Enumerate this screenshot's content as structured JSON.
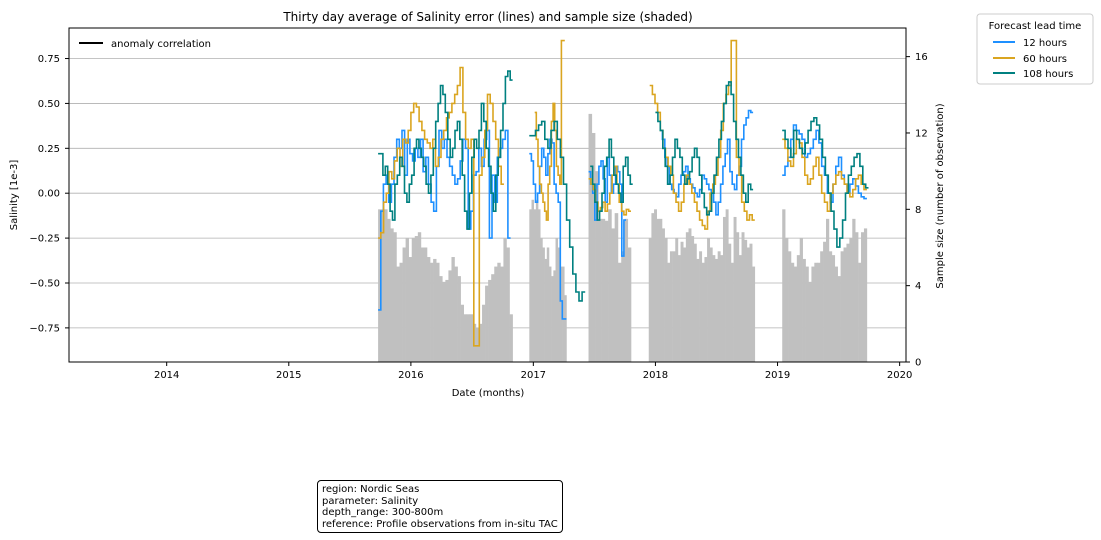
{
  "chart_data": {
    "type": "line",
    "title": "Thirty day average of Salinity error (lines) and sample size (shaded)",
    "xlabel": "Date (months)",
    "ylabel": "Salinity [1e-3]",
    "y2label": "Sample size (number of observation)",
    "xlim": [
      "2013-03-15",
      "2020-01-20"
    ],
    "ylim": [
      -0.94,
      0.92
    ],
    "y2lim": [
      0,
      17.5
    ],
    "x_ticks": [
      "2014",
      "2015",
      "2016",
      "2017",
      "2018",
      "2019",
      "2020"
    ],
    "y_ticks": [
      "0.75",
      "0.50",
      "0.25",
      "0.00",
      "−0.25",
      "−0.50",
      "−0.75"
    ],
    "y2_ticks": [
      "16",
      "12",
      "8",
      "4",
      "0"
    ],
    "grid": "horizontal",
    "legend_inner": {
      "label": "anomaly correlation",
      "color": "#000000",
      "placement": "upper-left"
    },
    "legend_outer": {
      "title": "Forecast lead time",
      "placement": "outside-right",
      "entries": [
        {
          "label": "12 hours",
          "color": "#1e90ff"
        },
        {
          "label": "60 hours",
          "color": "#daa520"
        },
        {
          "label": "108 hours",
          "color": "#008080"
        }
      ]
    },
    "bar_color": "#c0c0c0",
    "bars": [
      {
        "start": "2015-09-25",
        "end": "2016-10-31",
        "values": [
          8,
          8,
          8,
          7.5,
          7,
          6.8,
          5,
          5.2,
          6,
          6.5,
          5.5,
          6.5,
          6.6,
          6.8,
          6,
          6,
          5.5,
          5.2,
          5.4,
          5.2,
          4.5,
          4.2,
          4.3,
          4.8,
          5.5,
          5,
          4.5,
          3,
          2.5,
          2.5,
          2.5,
          2,
          1.8,
          2,
          3,
          4,
          4.3,
          4.6,
          5,
          5.2,
          5,
          6.5,
          6,
          2.5
        ]
      },
      {
        "start": "2016-12-20",
        "end": "2017-04-10",
        "values": [
          8,
          8.5,
          8,
          8.5,
          8,
          6.5,
          6,
          5.4,
          6,
          5,
          4.5,
          4.8,
          6.5,
          6,
          5,
          5,
          3.5
        ]
      },
      {
        "start": "2017-06-15",
        "end": "2017-10-20",
        "values": [
          13,
          12,
          10,
          7.5,
          7.5,
          7.4,
          8,
          7,
          7.8,
          5.2,
          5.8,
          7.5,
          6
        ]
      },
      {
        "start": "2017-12-12",
        "end": "2018-10-25",
        "values": [
          6.5,
          7.8,
          8,
          7.5,
          7.5,
          7,
          6.5,
          5.2,
          5.8,
          5.8,
          6.5,
          5.6,
          6.3,
          6,
          6.8,
          7,
          6.6,
          6.2,
          5.4,
          5.8,
          5.2,
          5.5,
          6.5,
          6,
          5.6,
          5.4,
          5.8,
          5.6,
          7.6,
          8,
          6.2,
          5.2,
          7.6,
          6.8,
          5.6,
          6.8,
          6.4,
          6,
          6.2,
          5
        ]
      },
      {
        "start": "2019-01-15",
        "end": "2019-09-25",
        "values": [
          8,
          6.5,
          5.8,
          5.2,
          5,
          5.6,
          6.5,
          5.4,
          5,
          4.2,
          5,
          5.2,
          5.2,
          5.8,
          6.3,
          7.5,
          5.8,
          5.6,
          5,
          4.5,
          5.8,
          6,
          6.2,
          6.5,
          7.5,
          6.8,
          5.2,
          6.8,
          7
        ]
      }
    ],
    "series": [
      {
        "name": "12 hours",
        "color": "#1e90ff",
        "segments": [
          {
            "start": "2015-09-25",
            "end": "2016-10-25",
            "values": [
              -0.65,
              -0.1,
              0.05,
              0.1,
              -0.05,
              0.05,
              0.2,
              0.3,
              0.25,
              0.35,
              0.1,
              0.3,
              0.22,
              0.18,
              0.25,
              0.2,
              0.3,
              0.12,
              0.2,
              0.05,
              -0.05,
              -0.1,
              0.15,
              0.35,
              0.25,
              0.3,
              0.2,
              0.15,
              0.1,
              0.05,
              0.08,
              0.18,
              0.3,
              0.25,
              -0.2,
              -0.1,
              0.1,
              0.12,
              0.25,
              0.15,
              0.3,
              0.35,
              -0.25,
              0.1,
              -0.05,
              0.2,
              0.25,
              0.3,
              0.35,
              -0.25
            ]
          },
          {
            "start": "2016-12-20",
            "end": "2017-04-10",
            "values": [
              0.22,
              0.18,
              0.05,
              -0.05,
              0.0,
              0.15,
              0.25,
              0.2,
              0.1,
              0.22,
              0.3,
              0.28,
              0.05,
              0.0,
              -0.05,
              -0.6,
              -0.7,
              -0.7
            ]
          },
          {
            "start": "2017-06-15",
            "end": "2017-10-05",
            "values": [
              0.12,
              0.05,
              0.0,
              -0.15,
              0.05,
              0.15,
              0.18,
              0.08,
              -0.05,
              0.2,
              0.1,
              0.0,
              0.05,
              0.15,
              0.12,
              0.05,
              -0.35,
              -0.15
            ]
          },
          {
            "start": "2018-01-15",
            "end": "2018-10-20",
            "values": [
              0.35,
              0.3,
              0.2,
              0.15,
              0.05,
              0.02,
              0.0,
              -0.02,
              0.05,
              0.1,
              0.12,
              0.15,
              0.08,
              0.05,
              0.03,
              0.0,
              -0.02,
              0.02,
              0.1,
              0.08,
              0.05,
              0.02,
              0.0,
              -0.05,
              -0.12,
              -0.05,
              0.05,
              0.15,
              0.22,
              0.3,
              0.12,
              0.05,
              0.02,
              0.1,
              0.15,
              0.3,
              0.38,
              0.42,
              0.46,
              0.45
            ]
          },
          {
            "start": "2019-01-15",
            "end": "2019-09-25",
            "values": [
              0.1,
              0.15,
              0.2,
              0.3,
              0.38,
              0.35,
              0.33,
              0.3,
              0.2,
              0.22,
              0.25,
              0.3,
              0.35,
              0.28,
              0.15,
              0.1,
              0.0,
              -0.05,
              0.05,
              0.15,
              0.2,
              0.1,
              0.05,
              0.0,
              0.05,
              0.08,
              0.04,
              0.0,
              -0.02,
              -0.03
            ]
          }
        ]
      },
      {
        "name": "60 hours",
        "color": "#daa520",
        "segments": [
          {
            "start": "2015-09-25",
            "end": "2016-10-05",
            "values": [
              -0.25,
              -0.22,
              -0.05,
              0.0,
              0.12,
              0.08,
              0.18,
              0.25,
              0.15,
              0.3,
              0.28,
              0.35,
              0.45,
              0.5,
              0.48,
              0.4,
              0.35,
              0.3,
              0.28,
              0.25,
              0.3,
              0.15,
              0.2,
              0.3,
              0.35,
              0.42,
              0.45,
              0.5,
              0.55,
              0.6,
              0.7,
              0.45,
              0.3,
              0.25,
              0.3,
              -0.85,
              -0.85,
              0.1,
              0.2,
              0.35,
              0.55,
              0.5,
              0.4,
              0.3,
              0.15,
              0.05
            ]
          },
          {
            "start": "2017-01-05",
            "end": "2017-04-05",
            "values": [
              0.45,
              0.3,
              0.15,
              0.05,
              0.0,
              -0.05,
              -0.1,
              -0.15,
              0.05,
              0.15,
              0.4,
              0.5,
              0.35,
              0.15,
              0.1,
              0.05,
              0.85,
              0.85
            ]
          },
          {
            "start": "2017-06-15",
            "end": "2017-10-20",
            "values": [
              0.08,
              0.05,
              0.02,
              -0.05,
              -0.1,
              -0.08,
              -0.05,
              -0.1,
              -0.06,
              0.0,
              0.1,
              0.15,
              0.05,
              -0.05,
              -0.1,
              -0.12,
              -0.09,
              -0.1
            ]
          },
          {
            "start": "2017-12-15",
            "end": "2018-10-25",
            "values": [
              0.6,
              0.55,
              0.5,
              0.45,
              0.35,
              0.25,
              0.2,
              0.15,
              0.1,
              0.0,
              -0.05,
              -0.1,
              -0.05,
              0.05,
              0.1,
              0.05,
              0.0,
              -0.05,
              -0.1,
              -0.15,
              -0.18,
              -0.2,
              -0.1,
              0.0,
              0.05,
              0.1,
              0.2,
              0.35,
              0.5,
              0.55,
              0.6,
              0.85,
              0.85,
              0.2,
              0.1,
              -0.05,
              -0.1,
              -0.15,
              -0.12,
              -0.15
            ]
          },
          {
            "start": "2019-01-15",
            "end": "2019-09-25",
            "values": [
              0.3,
              0.25,
              0.18,
              0.15,
              0.22,
              0.3,
              0.28,
              0.2,
              0.1,
              0.05,
              0.08,
              0.15,
              0.2,
              0.1,
              0.0,
              -0.05,
              -0.1,
              0.0,
              0.05,
              0.1,
              0.12,
              0.08,
              0.05,
              0.0,
              -0.02,
              0.02,
              0.08,
              0.1,
              0.05,
              0.02
            ]
          }
        ]
      },
      {
        "name": "108 hours",
        "color": "#008080",
        "segments": [
          {
            "start": "2015-09-25",
            "end": "2016-10-31",
            "values": [
              0.22,
              0.22,
              0.1,
              0.15,
              0.05,
              -0.1,
              -0.15,
              0.05,
              0.1,
              0.2,
              0.15,
              0.0,
              -0.05,
              0.05,
              0.1,
              0.25,
              0.3,
              0.25,
              0.2,
              0.15,
              0.05,
              0.0,
              0.1,
              0.25,
              0.4,
              0.5,
              0.6,
              0.55,
              0.45,
              0.3,
              0.2,
              0.25,
              0.35,
              0.4,
              0.3,
              0.1,
              -0.1,
              -0.2,
              0.0,
              0.2,
              0.3,
              0.25,
              0.35,
              0.5,
              0.4,
              0.25,
              0.15,
              0.0,
              -0.1,
              0.1,
              0.2,
              0.35,
              0.5,
              0.65,
              0.68,
              0.63
            ]
          },
          {
            "start": "2016-12-20",
            "end": "2017-06-05",
            "values": [
              0.32,
              0.32,
              0.35,
              0.38,
              0.4,
              0.3,
              0.25,
              0.35,
              0.4,
              0.3,
              0.2,
              0.05,
              -0.15,
              -0.3,
              -0.45,
              -0.55,
              -0.6,
              -0.55
            ]
          },
          {
            "start": "2017-06-20",
            "end": "2017-10-25",
            "values": [
              0.15,
              0.05,
              -0.05,
              -0.15,
              -0.1,
              0.0,
              0.15,
              0.2,
              0.3,
              0.2,
              0.1,
              0.05,
              0.0,
              -0.05,
              0.15,
              0.2,
              0.1,
              0.05
            ]
          },
          {
            "start": "2018-01-01",
            "end": "2018-10-20",
            "values": [
              0.45,
              0.4,
              0.35,
              0.25,
              0.15,
              0.05,
              0.1,
              0.2,
              0.3,
              0.25,
              0.2,
              0.1,
              0.05,
              0.08,
              0.12,
              0.2,
              0.25,
              0.2,
              0.1,
              0.0,
              -0.08,
              -0.12,
              -0.1,
              0.0,
              0.1,
              0.2,
              0.3,
              0.4,
              0.5,
              0.6,
              0.62,
              0.55,
              0.4,
              0.3,
              0.2,
              0.1,
              0.0,
              -0.05,
              0.05,
              0.02
            ]
          },
          {
            "start": "2019-01-15",
            "end": "2019-09-30",
            "values": [
              0.35,
              0.3,
              0.25,
              0.2,
              0.35,
              0.3,
              0.25,
              0.22,
              0.28,
              0.35,
              0.4,
              0.42,
              0.38,
              0.3,
              0.2,
              0.1,
              0.0,
              -0.1,
              -0.2,
              -0.3,
              -0.25,
              -0.15,
              0.0,
              0.1,
              0.15,
              0.2,
              0.22,
              0.15,
              0.05,
              0.03
            ]
          }
        ]
      }
    ]
  },
  "info_box": {
    "region": "region: Nordic Seas",
    "parameter": "parameter: Salinity",
    "depth_range": "depth_range: 300-800m",
    "reference": "reference: Profile observations from in-situ TAC"
  }
}
